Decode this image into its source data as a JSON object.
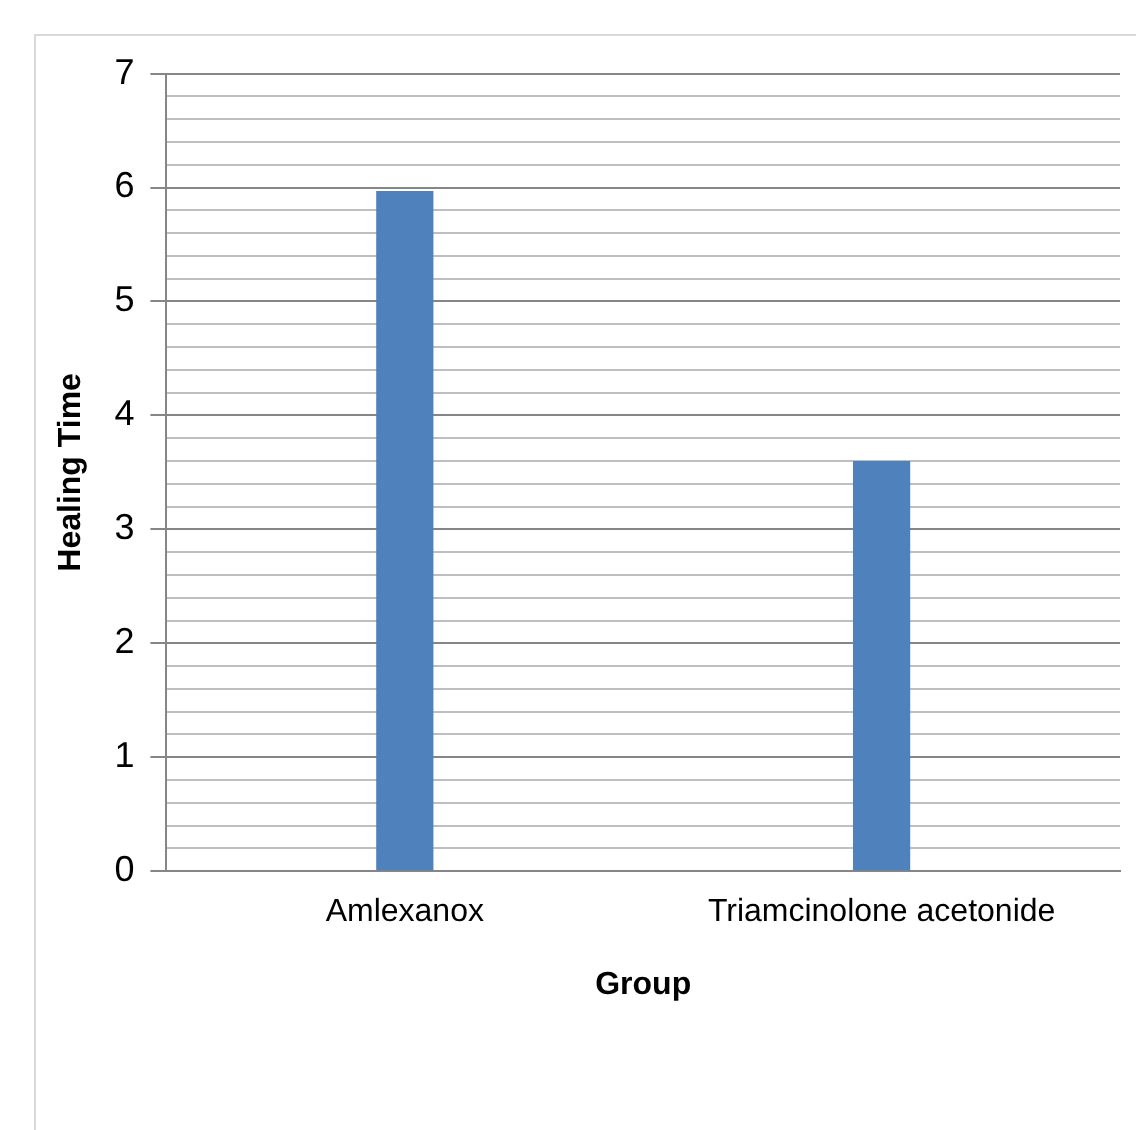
{
  "chart_data": {
    "type": "bar",
    "xlabel": "Group",
    "ylabel": "Healing Time",
    "categories": [
      "Amlexanox",
      "Triamcinolone acetonide"
    ],
    "values": [
      5.97,
      3.6
    ],
    "color": "#4f81bd",
    "ylim": [
      0,
      7
    ],
    "yticks": [
      0,
      {
        "value": 0.2,
        "label": null
      },
      {
        "value": 0.4,
        "label": null
      },
      {
        "value": 0.6,
        "label": null
      },
      {
        "value": 0.8,
        "label": null
      },
      1,
      {
        "value": 1.2,
        "label": null
      },
      {
        "value": 1.4,
        "label": null
      },
      {
        "value": 1.6,
        "label": null
      },
      {
        "value": 1.8,
        "label": null
      },
      2,
      {
        "value": 2.2,
        "label": null
      },
      {
        "value": 2.4,
        "label": null
      },
      {
        "value": 2.6,
        "label": null
      },
      {
        "value": 2.8,
        "label": null
      },
      3,
      {
        "value": 3.2,
        "label": null
      },
      {
        "value": 3.4,
        "label": null
      },
      {
        "value": 3.6,
        "label": null
      },
      {
        "value": 3.8,
        "label": null
      },
      4,
      {
        "value": 4.2,
        "label": null
      },
      {
        "value": 4.4,
        "label": null
      },
      {
        "value": 4.6,
        "label": null
      },
      {
        "value": 4.8,
        "label": null
      },
      5,
      {
        "value": 5.2,
        "label": null
      },
      {
        "value": 5.4,
        "label": null
      },
      {
        "value": 5.6,
        "label": null
      },
      {
        "value": 5.8,
        "label": null
      },
      6,
      {
        "value": 6.2,
        "label": null
      },
      {
        "value": 6.4,
        "label": null
      },
      {
        "value": 6.6,
        "label": null
      },
      {
        "value": 6.8,
        "label": null
      },
      7
    ],
    "grid": "y"
  }
}
